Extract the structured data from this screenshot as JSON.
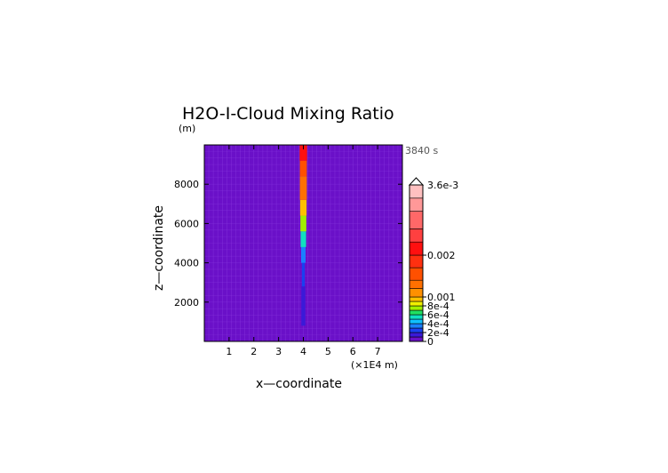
{
  "chart_data": {
    "type": "heatmap",
    "title": "H2O-I-Cloud Mixing Ratio",
    "ylabel_unit": "(m)",
    "time_label": "3840 s",
    "xlabel": "x—coordinate",
    "ylabel": "z—coordinate",
    "x_unit_label": "(×1E4 m)",
    "x_ticks": [
      1,
      2,
      3,
      4,
      5,
      6,
      7
    ],
    "x_tick_labels": [
      "1",
      "2",
      "3",
      "4",
      "5",
      "6",
      "7"
    ],
    "y_ticks": [
      2000,
      4000,
      6000,
      8000
    ],
    "y_tick_labels": [
      "2000",
      "4000",
      "6000",
      "8000"
    ],
    "xlim": [
      0,
      8
    ],
    "ylim": [
      0,
      10000
    ],
    "background_value": 0,
    "plume": {
      "center_x": 4.0,
      "segments": [
        {
          "z": [
            800,
            2800
          ],
          "half_width": 0.08,
          "value": 0.00015
        },
        {
          "z": [
            2800,
            4000
          ],
          "half_width": 0.06,
          "value": 0.0002
        },
        {
          "z": [
            4000,
            4800
          ],
          "half_width": 0.09,
          "value": 0.00035
        },
        {
          "z": [
            4800,
            5600
          ],
          "half_width": 0.11,
          "value": 0.0005
        },
        {
          "z": [
            5600,
            6400
          ],
          "half_width": 0.12,
          "value": 0.0007
        },
        {
          "z": [
            6400,
            7200
          ],
          "half_width": 0.13,
          "value": 0.0009
        },
        {
          "z": [
            7200,
            8400
          ],
          "half_width": 0.14,
          "value": 0.0012
        },
        {
          "z": [
            8400,
            9200
          ],
          "half_width": 0.14,
          "value": 0.0016
        },
        {
          "z": [
            9200,
            10000
          ],
          "half_width": 0.15,
          "value": 0.002
        }
      ]
    },
    "colorbar": {
      "max_label": "3.6e-3",
      "labels": [
        {
          "value": 0,
          "text": "0"
        },
        {
          "value": 0.0002,
          "text": "2e-4"
        },
        {
          "value": 0.0004,
          "text": "4e-4"
        },
        {
          "value": 0.0006,
          "text": "6e-4"
        },
        {
          "value": 0.0008,
          "text": "8e-4"
        },
        {
          "value": 0.001,
          "text": "0.001"
        },
        {
          "value": 0.002,
          "text": "0.002"
        }
      ],
      "bands": [
        {
          "from": 0,
          "to": 0.0001,
          "color": "#6a10c8"
        },
        {
          "from": 0.0001,
          "to": 0.0002,
          "color": "#3a1ad8"
        },
        {
          "from": 0.0002,
          "to": 0.0003,
          "color": "#1a40f0"
        },
        {
          "from": 0.0003,
          "to": 0.0004,
          "color": "#1a80ff"
        },
        {
          "from": 0.0004,
          "to": 0.0005,
          "color": "#10c0ff"
        },
        {
          "from": 0.0005,
          "to": 0.0006,
          "color": "#10e0c0"
        },
        {
          "from": 0.0006,
          "to": 0.0007,
          "color": "#20e060"
        },
        {
          "from": 0.0007,
          "to": 0.0008,
          "color": "#a0f000"
        },
        {
          "from": 0.0008,
          "to": 0.0009,
          "color": "#f0f000"
        },
        {
          "from": 0.0009,
          "to": 0.001,
          "color": "#ffc000"
        },
        {
          "from": 0.001,
          "to": 0.0012,
          "color": "#ff9000"
        },
        {
          "from": 0.0012,
          "to": 0.0014,
          "color": "#ff7000"
        },
        {
          "from": 0.0014,
          "to": 0.0017,
          "color": "#ff5000"
        },
        {
          "from": 0.0017,
          "to": 0.002,
          "color": "#ff3010"
        },
        {
          "from": 0.002,
          "to": 0.0023,
          "color": "#ff1010"
        },
        {
          "from": 0.0023,
          "to": 0.0026,
          "color": "#ff4040"
        },
        {
          "from": 0.0026,
          "to": 0.003,
          "color": "#ff6868"
        },
        {
          "from": 0.003,
          "to": 0.0033,
          "color": "#ff9898"
        },
        {
          "from": 0.0033,
          "to": 0.0036,
          "color": "#ffc0c0"
        }
      ]
    }
  }
}
